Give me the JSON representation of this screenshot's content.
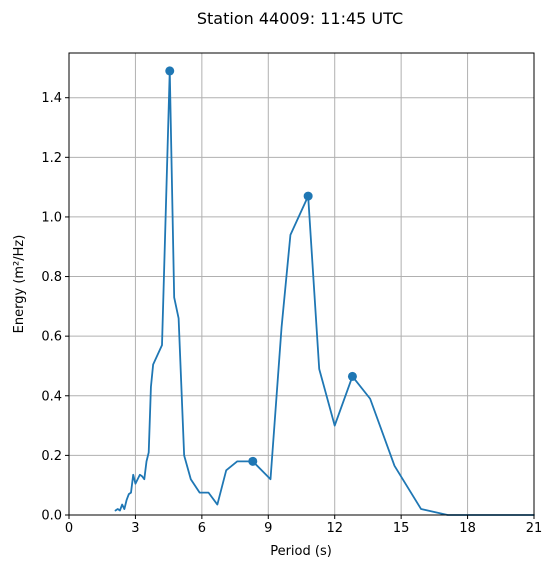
{
  "chart_data": {
    "type": "line",
    "title": "Station 44009: 11:45 UTC",
    "xlabel": "Period (s)",
    "ylabel": "Energy (m²/Hz)",
    "xlim": [
      0,
      21
    ],
    "ylim": [
      0,
      1.55
    ],
    "grid": true,
    "xticks": [
      "0",
      "3",
      "6",
      "9",
      "12",
      "15",
      "18",
      "21"
    ],
    "yticks": [
      "0.0",
      "0.2",
      "0.4",
      "0.6",
      "0.8",
      "1.0",
      "1.2",
      "1.4"
    ],
    "color": "#1f77b4",
    "series": [
      {
        "x": [
          2.1,
          2.2,
          2.3,
          2.4,
          2.5,
          2.6,
          2.7,
          2.8,
          2.9,
          3.0,
          3.1,
          3.2,
          3.3,
          3.4,
          3.5,
          3.6,
          3.7,
          3.8,
          4.2,
          4.55,
          4.75,
          4.95,
          5.2,
          5.5,
          5.9,
          6.3,
          6.7,
          7.1,
          7.6,
          8.3,
          9.1,
          9.6,
          10.0,
          10.8,
          11.3,
          12.0,
          12.8,
          13.6,
          14.7,
          15.9,
          17.1,
          18.5,
          21.0
        ],
        "y": [
          0.015,
          0.02,
          0.015,
          0.035,
          0.02,
          0.05,
          0.07,
          0.075,
          0.135,
          0.105,
          0.12,
          0.135,
          0.13,
          0.12,
          0.18,
          0.21,
          0.43,
          0.505,
          0.57,
          1.49,
          0.73,
          0.66,
          0.2,
          0.12,
          0.075,
          0.075,
          0.035,
          0.15,
          0.18,
          0.18,
          0.12,
          0.63,
          0.94,
          1.07,
          0.49,
          0.3,
          0.465,
          0.39,
          0.165,
          0.02,
          0.0,
          0.0,
          0.0
        ]
      }
    ],
    "markers": {
      "x": [
        4.55,
        8.3,
        10.8,
        12.8
      ],
      "y": [
        1.49,
        0.18,
        1.07,
        0.465
      ]
    }
  }
}
